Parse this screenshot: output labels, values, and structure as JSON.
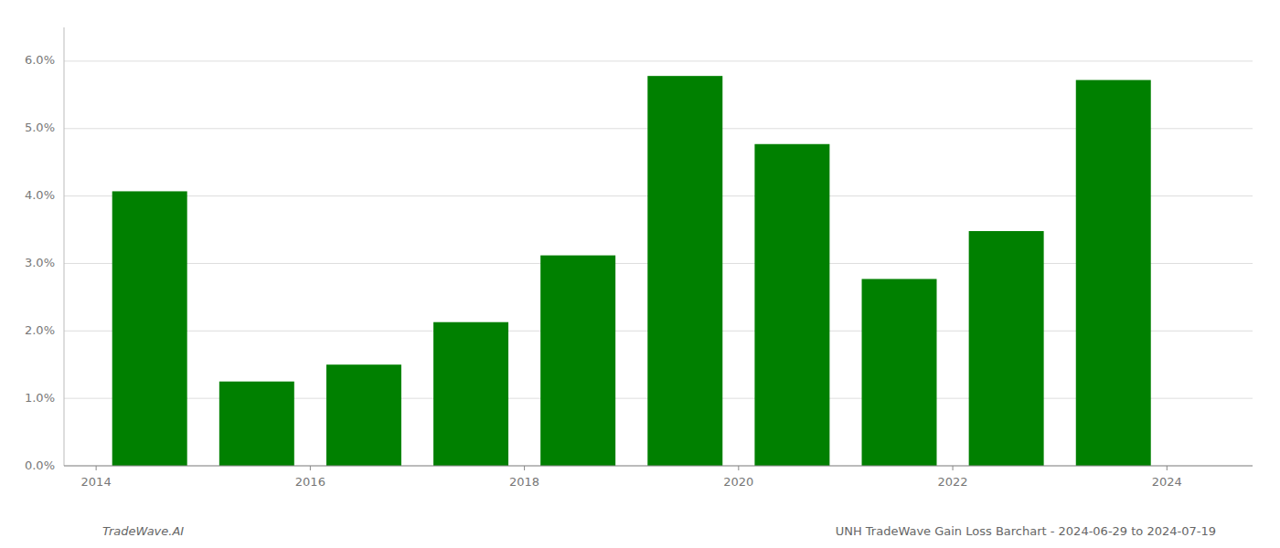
{
  "chart_data": {
    "type": "bar",
    "title": "UNH TradeWave Gain Loss Barchart - 2024-06-29 to 2024-07-19",
    "annotations": [
      "TradeWave.AI"
    ],
    "x": [
      2014,
      2015,
      2016,
      2017,
      2018,
      2019,
      2020,
      2021,
      2022,
      2023
    ],
    "values": [
      0.0407,
      0.0125,
      0.015,
      0.0213,
      0.0312,
      0.0578,
      0.0477,
      0.0277,
      0.0348,
      0.0572
    ],
    "color": "#008000",
    "xlim": [
      2013.2,
      2024.3
    ],
    "xticks": [
      {
        "value": 2013.5,
        "label": "2014"
      },
      {
        "value": 2015.5,
        "label": "2016"
      },
      {
        "value": 2017.5,
        "label": "2018"
      },
      {
        "value": 2019.5,
        "label": "2020"
      },
      {
        "value": 2021.5,
        "label": "2022"
      },
      {
        "value": 2023.5,
        "label": "2024"
      }
    ],
    "ylim": [
      0.0,
      0.065
    ],
    "yticks": [
      {
        "value": 0.0,
        "label": "0.0%"
      },
      {
        "value": 0.01,
        "label": "1.0%"
      },
      {
        "value": 0.02,
        "label": "2.0%"
      },
      {
        "value": 0.03,
        "label": "3.0%"
      },
      {
        "value": 0.04,
        "label": "4.0%"
      },
      {
        "value": 0.05,
        "label": "5.0%"
      },
      {
        "value": 0.06,
        "label": "6.0%"
      }
    ],
    "grid": true
  }
}
